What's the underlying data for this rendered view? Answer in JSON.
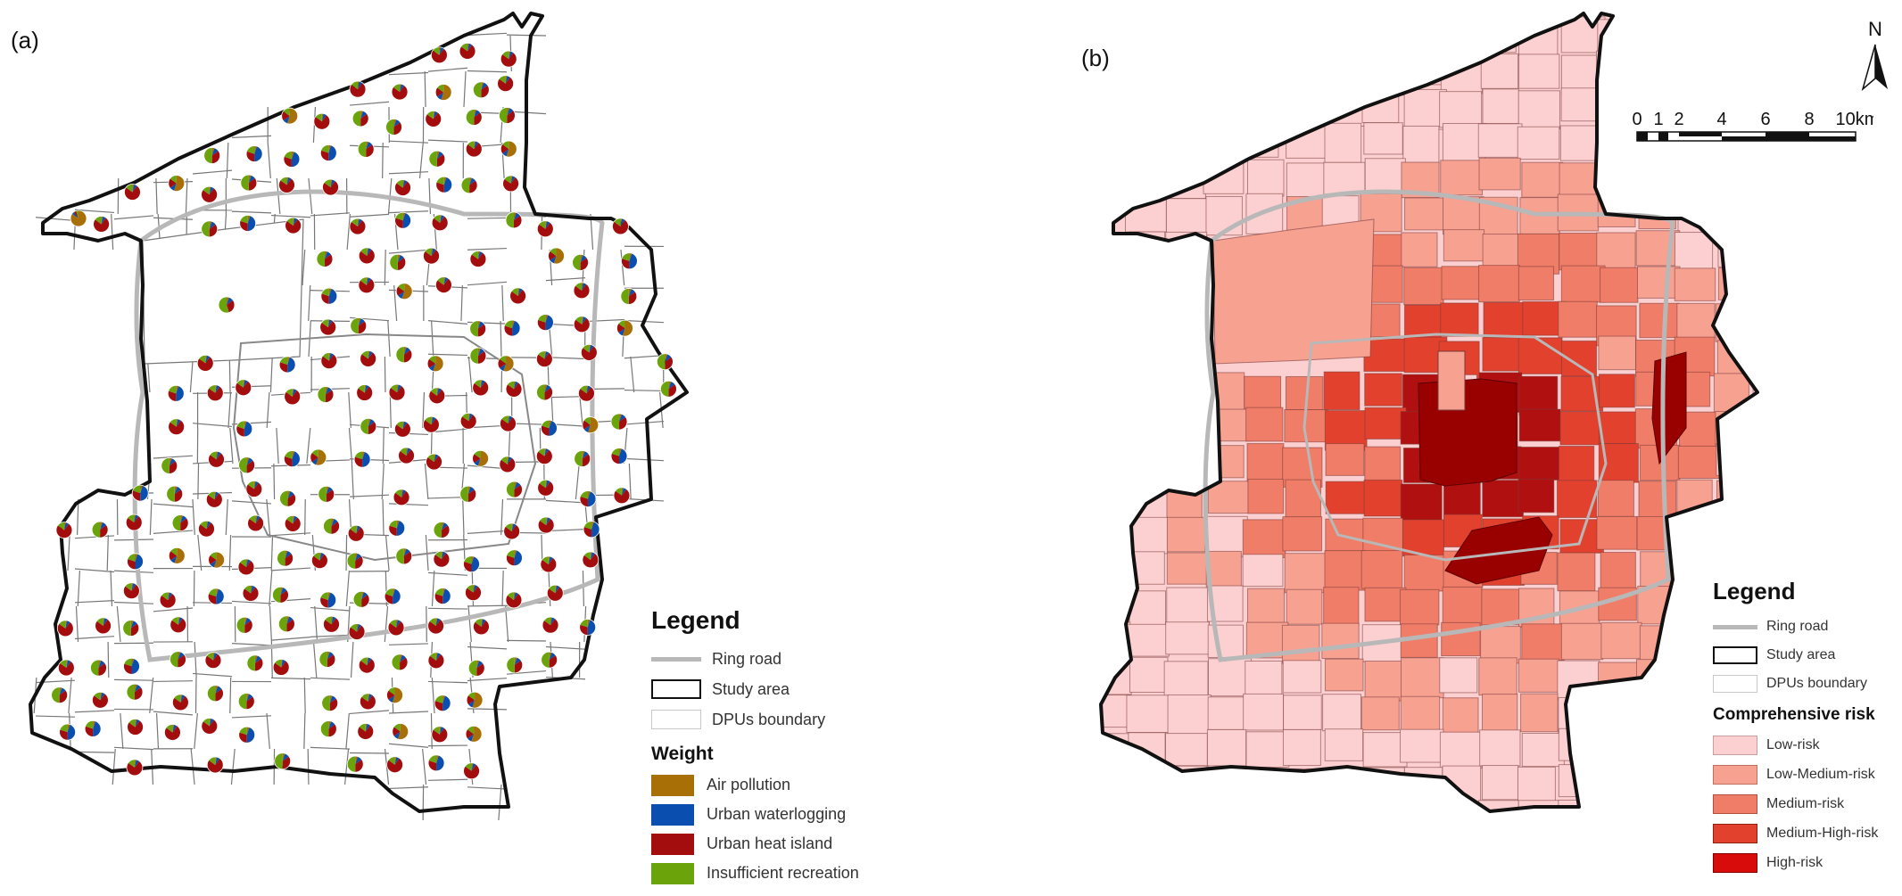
{
  "panel_a": {
    "label": "(a)",
    "legend": {
      "title": "Legend",
      "items": [
        {
          "label": "Ring road",
          "symbol": "ring-road"
        },
        {
          "label": "Study area",
          "symbol": "study-area"
        },
        {
          "label": "DPUs boundary",
          "symbol": "dpu-boundary"
        }
      ],
      "weight_title": "Weight",
      "weights": [
        {
          "label": "Air pollution",
          "color": "#a86f06"
        },
        {
          "label": "Urban waterlogging",
          "color": "#0a4fb0"
        },
        {
          "label": "Urban heat island",
          "color": "#a40d0d"
        },
        {
          "label": "Insufficient recreation",
          "color": "#6aa30a"
        }
      ]
    }
  },
  "panel_b": {
    "label": "(b)",
    "north_label": "N",
    "scale_labels": [
      "0",
      "1",
      "2",
      "4",
      "6",
      "8",
      "10km"
    ],
    "legend": {
      "title": "Legend",
      "items": [
        {
          "label": "Ring road",
          "symbol": "ring-road"
        },
        {
          "label": "Study area",
          "symbol": "study-area"
        },
        {
          "label": "DPUs boundary",
          "symbol": "dpu-boundary"
        }
      ],
      "risk_title": "Comprehensive risk",
      "risks": [
        {
          "label": "Low-risk",
          "color": "#fcd0d0"
        },
        {
          "label": "Low-Medium-risk",
          "color": "#f7a191"
        },
        {
          "label": "Medium-risk",
          "color": "#f07d67"
        },
        {
          "label": "Medium-High-risk",
          "color": "#e2412e"
        },
        {
          "label": "High-risk",
          "color": "#d90c0c"
        }
      ]
    }
  },
  "colors": {
    "ring_road": "#b8b8b8",
    "study_area": "#111111",
    "dpu_boundary": "#888888",
    "high_risk_center": "#990000"
  }
}
